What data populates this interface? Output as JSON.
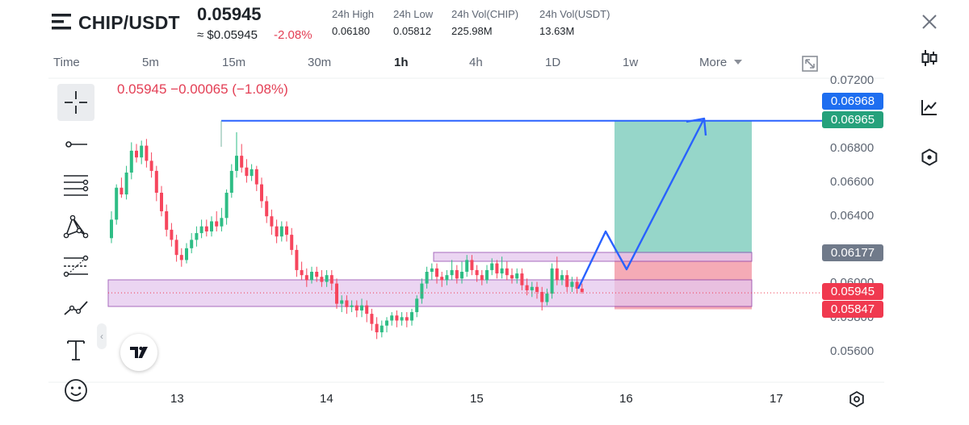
{
  "header": {
    "pair": "CHIP/USDT",
    "last_price": "0.05945",
    "approx_price": "≈ $0.05945",
    "change_pct": "-2.08%",
    "stats": [
      {
        "label": "24h High",
        "value": "0.06180"
      },
      {
        "label": "24h Low",
        "value": "0.05812"
      },
      {
        "label": "24h Vol(CHIP)",
        "value": "225.98M"
      },
      {
        "label": "24h Vol(USDT)",
        "value": "13.63M"
      }
    ]
  },
  "intervals": [
    "Time",
    "5m",
    "15m",
    "30m",
    "1h",
    "4h",
    "1D",
    "1w",
    "More"
  ],
  "active_interval": "1h",
  "legend": "0.05945  −0.00065 (−1.08%)",
  "y_axis": {
    "labels": [
      "0.07200",
      "0.06800",
      "0.06600",
      "0.06400",
      "0.06000",
      "0.05800",
      "0.05600"
    ],
    "badges": [
      {
        "value": "0.06968",
        "color": "#1e6ef0"
      },
      {
        "value": "0.06965",
        "color": "#26a17b"
      },
      {
        "value": "0.06177",
        "color": "#707a8a"
      },
      {
        "value": "0.05945",
        "color": "#f0394f"
      },
      {
        "value": "0.05847",
        "color": "#f0394f"
      }
    ]
  },
  "x_axis": {
    "labels": [
      "13",
      "14",
      "15",
      "16",
      "17"
    ]
  },
  "colors": {
    "up": "#2ebd85",
    "down": "#f6465d",
    "trendline": "#2962ff",
    "zone": "#e5c8ee",
    "zone_border": "#8a3aa8",
    "target": "#90d4c6",
    "stop": "#f4a6b2"
  },
  "icons": [
    "logo-icon",
    "close-icon",
    "expand-icon",
    "candles-icon",
    "line-chart-icon",
    "hexagon-icon",
    "crosshair-icon",
    "horizontal-line-icon",
    "parallel-channel-icon",
    "pattern-icon",
    "fib-tool-icon",
    "polyline-icon",
    "text-tool-icon",
    "emoji-icon",
    "settings-icon"
  ],
  "candles": [
    [
      0.0627,
      0.0638,
      0.0624,
      0.0643
    ],
    [
      0.0638,
      0.0657,
      0.0635,
      0.0659
    ],
    [
      0.0657,
      0.0653,
      0.0651,
      0.0663
    ],
    [
      0.0653,
      0.0666,
      0.065,
      0.067
    ],
    [
      0.0666,
      0.0679,
      0.0662,
      0.0684
    ],
    [
      0.0679,
      0.0675,
      0.0672,
      0.0683
    ],
    [
      0.0675,
      0.0682,
      0.0671,
      0.0685
    ],
    [
      0.0682,
      0.0673,
      0.0669,
      0.0686
    ],
    [
      0.0673,
      0.0667,
      0.0663,
      0.0678
    ],
    [
      0.0667,
      0.0654,
      0.0649,
      0.067
    ],
    [
      0.0654,
      0.0643,
      0.064,
      0.0658
    ],
    [
      0.0643,
      0.0632,
      0.0628,
      0.0647
    ],
    [
      0.0632,
      0.0626,
      0.0622,
      0.0636
    ],
    [
      0.0626,
      0.0617,
      0.0613,
      0.0629
    ],
    [
      0.0617,
      0.0614,
      0.061,
      0.0621
    ],
    [
      0.0614,
      0.0621,
      0.0612,
      0.0624
    ],
    [
      0.0621,
      0.0626,
      0.0618,
      0.063
    ],
    [
      0.0626,
      0.063,
      0.0622,
      0.0634
    ],
    [
      0.063,
      0.0634,
      0.0627,
      0.0638
    ],
    [
      0.0634,
      0.0631,
      0.0628,
      0.0638
    ],
    [
      0.0631,
      0.0637,
      0.0628,
      0.064
    ],
    [
      0.0637,
      0.0634,
      0.0631,
      0.0643
    ],
    [
      0.0634,
      0.0639,
      0.0631,
      0.0645
    ],
    [
      0.0639,
      0.0654,
      0.0635,
      0.0656
    ],
    [
      0.0654,
      0.0667,
      0.0651,
      0.0671
    ],
    [
      0.0667,
      0.0676,
      0.0663,
      0.069
    ],
    [
      0.0676,
      0.0669,
      0.0666,
      0.0683
    ],
    [
      0.0669,
      0.0664,
      0.066,
      0.0674
    ],
    [
      0.0664,
      0.0668,
      0.0661,
      0.0671
    ],
    [
      0.0668,
      0.0659,
      0.0655,
      0.067
    ],
    [
      0.0659,
      0.0649,
      0.0645,
      0.0663
    ],
    [
      0.0649,
      0.064,
      0.0636,
      0.0652
    ],
    [
      0.064,
      0.0634,
      0.0629,
      0.0644
    ],
    [
      0.0634,
      0.0628,
      0.0624,
      0.0638
    ],
    [
      0.0628,
      0.0634,
      0.0625,
      0.0637
    ],
    [
      0.0634,
      0.0629,
      0.0625,
      0.0637
    ],
    [
      0.0629,
      0.062,
      0.0617,
      0.0633
    ],
    [
      0.062,
      0.0608,
      0.0604,
      0.0623
    ],
    [
      0.0608,
      0.0605,
      0.0602,
      0.0613
    ],
    [
      0.0605,
      0.0602,
      0.0598,
      0.0609
    ],
    [
      0.0602,
      0.0607,
      0.06,
      0.061
    ],
    [
      0.0607,
      0.0604,
      0.0601,
      0.061
    ],
    [
      0.0604,
      0.0601,
      0.0598,
      0.0608
    ],
    [
      0.0601,
      0.0605,
      0.0598,
      0.0608
    ],
    [
      0.0605,
      0.06,
      0.0596,
      0.0608
    ],
    [
      0.06,
      0.0588,
      0.0585,
      0.0603
    ],
    [
      0.0588,
      0.059,
      0.0583,
      0.0593
    ],
    [
      0.059,
      0.0586,
      0.0582,
      0.0593
    ],
    [
      0.0586,
      0.0587,
      0.0583,
      0.059
    ],
    [
      0.0587,
      0.0584,
      0.058,
      0.059
    ],
    [
      0.0584,
      0.0587,
      0.058,
      0.0591
    ],
    [
      0.0587,
      0.0582,
      0.0577,
      0.059
    ],
    [
      0.0582,
      0.0576,
      0.0572,
      0.0585
    ],
    [
      0.0576,
      0.0571,
      0.0567,
      0.058
    ],
    [
      0.0571,
      0.0575,
      0.0568,
      0.0578
    ],
    [
      0.0575,
      0.0578,
      0.0571,
      0.058
    ],
    [
      0.0578,
      0.0581,
      0.0575,
      0.0583
    ],
    [
      0.0581,
      0.0578,
      0.0574,
      0.0584
    ],
    [
      0.0578,
      0.058,
      0.0575,
      0.0583
    ],
    [
      0.058,
      0.0578,
      0.0574,
      0.0583
    ],
    [
      0.0578,
      0.0583,
      0.0575,
      0.0585
    ],
    [
      0.0583,
      0.0591,
      0.058,
      0.0593
    ],
    [
      0.0591,
      0.06,
      0.0588,
      0.0603
    ],
    [
      0.06,
      0.0607,
      0.0597,
      0.061
    ],
    [
      0.0607,
      0.0609,
      0.0602,
      0.0612
    ],
    [
      0.0609,
      0.0604,
      0.06,
      0.0612
    ],
    [
      0.0604,
      0.0602,
      0.0598,
      0.0607
    ],
    [
      0.0602,
      0.0605,
      0.0599,
      0.0608
    ],
    [
      0.0605,
      0.0608,
      0.0602,
      0.0614
    ],
    [
      0.0608,
      0.0603,
      0.06,
      0.0611
    ],
    [
      0.0603,
      0.0607,
      0.06,
      0.0613
    ],
    [
      0.0607,
      0.0614,
      0.0604,
      0.0617
    ],
    [
      0.0614,
      0.0608,
      0.0605,
      0.0617
    ],
    [
      0.0608,
      0.0605,
      0.0601,
      0.0611
    ],
    [
      0.0605,
      0.0602,
      0.0599,
      0.0608
    ],
    [
      0.0602,
      0.0608,
      0.06,
      0.0611
    ],
    [
      0.0608,
      0.0612,
      0.0605,
      0.0615
    ],
    [
      0.0612,
      0.0606,
      0.0603,
      0.0614
    ],
    [
      0.0606,
      0.0609,
      0.0603,
      0.0616
    ],
    [
      0.0609,
      0.0605,
      0.0602,
      0.0613
    ],
    [
      0.0605,
      0.0603,
      0.06,
      0.0609
    ],
    [
      0.0603,
      0.0606,
      0.06,
      0.0609
    ],
    [
      0.0606,
      0.0599,
      0.0596,
      0.0609
    ],
    [
      0.0599,
      0.0596,
      0.0593,
      0.0603
    ],
    [
      0.0596,
      0.0598,
      0.0592,
      0.0601
    ],
    [
      0.0598,
      0.0595,
      0.0591,
      0.0601
    ],
    [
      0.0595,
      0.0589,
      0.0584,
      0.0598
    ],
    [
      0.0589,
      0.0594,
      0.0587,
      0.0597
    ],
    [
      0.0594,
      0.0609,
      0.0591,
      0.0612
    ],
    [
      0.0609,
      0.0602,
      0.0599,
      0.0616
    ],
    [
      0.0602,
      0.0605,
      0.0599,
      0.0608
    ],
    [
      0.0605,
      0.0598,
      0.0595,
      0.0608
    ],
    [
      0.0598,
      0.0601,
      0.0595,
      0.0604
    ],
    [
      0.0601,
      0.0597,
      0.0594,
      0.0604
    ],
    [
      0.0597,
      0.0595,
      0.0594,
      0.06
    ]
  ]
}
